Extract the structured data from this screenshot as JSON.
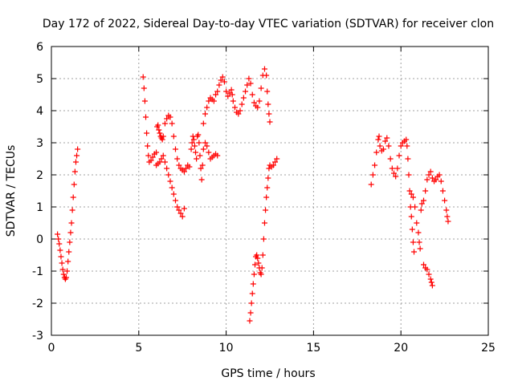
{
  "chart_data": {
    "type": "scatter",
    "title": "Day 172 of 2022, Sidereal Day-to-day VTEC variation (SDTVAR) for receiver clon",
    "xlabel": "GPS time / hours",
    "ylabel": "SDTVAR / TECUs",
    "xlim": [
      0,
      25
    ],
    "ylim": [
      -3,
      6
    ],
    "xticks": [
      0,
      5,
      10,
      15,
      20,
      25
    ],
    "yticks": [
      -3,
      -2,
      -1,
      0,
      1,
      2,
      3,
      4,
      5,
      6
    ],
    "xtick_labels": [
      "0",
      "5",
      "10",
      "15",
      "20",
      "25"
    ],
    "ytick_labels": [
      "-3",
      "-2",
      "-1",
      "0",
      "1",
      "2",
      "3",
      "4",
      "5",
      "6"
    ],
    "grid": true,
    "marker": "+",
    "color": "#ff0000",
    "series": [
      {
        "name": "SDTVAR",
        "points": [
          [
            0.35,
            0.15
          ],
          [
            0.4,
            0.0
          ],
          [
            0.45,
            -0.15
          ],
          [
            0.5,
            -0.35
          ],
          [
            0.55,
            -0.55
          ],
          [
            0.6,
            -0.75
          ],
          [
            0.65,
            -0.95
          ],
          [
            0.7,
            -1.1
          ],
          [
            0.75,
            -1.2
          ],
          [
            0.8,
            -1.25
          ],
          [
            0.85,
            -1.2
          ],
          [
            0.9,
            -1.0
          ],
          [
            0.95,
            -0.7
          ],
          [
            1.0,
            -0.4
          ],
          [
            1.05,
            -0.1
          ],
          [
            1.1,
            0.2
          ],
          [
            1.15,
            0.5
          ],
          [
            1.2,
            0.9
          ],
          [
            1.25,
            1.3
          ],
          [
            1.3,
            1.7
          ],
          [
            1.35,
            2.1
          ],
          [
            1.4,
            2.4
          ],
          [
            1.45,
            2.6
          ],
          [
            1.5,
            2.8
          ],
          [
            5.25,
            5.05
          ],
          [
            5.3,
            4.7
          ],
          [
            5.35,
            4.3
          ],
          [
            5.4,
            3.8
          ],
          [
            5.45,
            3.3
          ],
          [
            5.5,
            2.9
          ],
          [
            5.55,
            2.6
          ],
          [
            5.6,
            2.4
          ],
          [
            5.7,
            2.45
          ],
          [
            5.8,
            2.55
          ],
          [
            5.9,
            2.65
          ],
          [
            6.0,
            2.7
          ],
          [
            6.05,
            3.5
          ],
          [
            6.1,
            3.55
          ],
          [
            6.15,
            3.4
          ],
          [
            6.2,
            3.3
          ],
          [
            6.25,
            3.2
          ],
          [
            6.3,
            3.15
          ],
          [
            6.35,
            3.1
          ],
          [
            6.4,
            3.2
          ],
          [
            6.5,
            3.6
          ],
          [
            6.6,
            3.75
          ],
          [
            6.7,
            3.85
          ],
          [
            6.8,
            3.8
          ],
          [
            6.9,
            3.6
          ],
          [
            7.0,
            3.2
          ],
          [
            7.1,
            2.8
          ],
          [
            7.2,
            2.5
          ],
          [
            7.3,
            2.3
          ],
          [
            7.4,
            2.2
          ],
          [
            7.5,
            2.15
          ],
          [
            7.6,
            2.1
          ],
          [
            7.7,
            2.2
          ],
          [
            7.8,
            2.3
          ],
          [
            7.9,
            2.25
          ],
          [
            6.0,
            2.3
          ],
          [
            6.1,
            2.35
          ],
          [
            6.2,
            2.4
          ],
          [
            6.3,
            2.5
          ],
          [
            6.4,
            2.6
          ],
          [
            6.5,
            2.4
          ],
          [
            6.6,
            2.2
          ],
          [
            6.7,
            2.0
          ],
          [
            6.8,
            1.8
          ],
          [
            6.9,
            1.6
          ],
          [
            7.0,
            1.4
          ],
          [
            7.1,
            1.2
          ],
          [
            7.2,
            1.0
          ],
          [
            7.3,
            0.9
          ],
          [
            7.4,
            0.8
          ],
          [
            7.5,
            0.7
          ],
          [
            7.6,
            0.95
          ],
          [
            8.0,
            2.8
          ],
          [
            8.05,
            3.0
          ],
          [
            8.1,
            3.2
          ],
          [
            8.15,
            3.1
          ],
          [
            8.2,
            2.9
          ],
          [
            8.25,
            2.7
          ],
          [
            8.3,
            2.5
          ],
          [
            8.35,
            3.2
          ],
          [
            8.4,
            3.25
          ],
          [
            8.45,
            3.0
          ],
          [
            8.5,
            2.6
          ],
          [
            8.55,
            2.2
          ],
          [
            8.6,
            1.85
          ],
          [
            8.65,
            2.3
          ],
          [
            8.7,
            2.8
          ],
          [
            8.8,
            3.0
          ],
          [
            8.9,
            2.9
          ],
          [
            9.0,
            2.7
          ],
          [
            9.1,
            2.5
          ],
          [
            9.2,
            2.55
          ],
          [
            9.3,
            2.6
          ],
          [
            9.4,
            2.65
          ],
          [
            9.5,
            2.6
          ],
          [
            8.7,
            3.6
          ],
          [
            8.8,
            3.9
          ],
          [
            8.9,
            4.1
          ],
          [
            9.0,
            4.3
          ],
          [
            9.1,
            4.4
          ],
          [
            9.2,
            4.35
          ],
          [
            9.3,
            4.3
          ],
          [
            9.4,
            4.5
          ],
          [
            9.5,
            4.6
          ],
          [
            9.6,
            4.8
          ],
          [
            9.7,
            4.95
          ],
          [
            9.8,
            5.05
          ],
          [
            9.9,
            4.9
          ],
          [
            10.0,
            4.6
          ],
          [
            10.1,
            4.45
          ],
          [
            10.2,
            4.55
          ],
          [
            10.3,
            4.65
          ],
          [
            10.35,
            4.5
          ],
          [
            10.4,
            4.3
          ],
          [
            10.5,
            4.1
          ],
          [
            10.6,
            3.95
          ],
          [
            10.7,
            3.9
          ],
          [
            10.8,
            4.0
          ],
          [
            10.9,
            4.2
          ],
          [
            11.0,
            4.4
          ],
          [
            11.1,
            4.6
          ],
          [
            11.2,
            4.8
          ],
          [
            11.3,
            5.0
          ],
          [
            11.4,
            4.85
          ],
          [
            11.5,
            4.5
          ],
          [
            11.6,
            4.25
          ],
          [
            11.7,
            4.15
          ],
          [
            11.8,
            4.1
          ],
          [
            11.9,
            4.3
          ],
          [
            12.0,
            4.7
          ],
          [
            12.1,
            5.1
          ],
          [
            12.2,
            5.3
          ],
          [
            12.3,
            5.1
          ],
          [
            12.35,
            4.6
          ],
          [
            12.4,
            4.2
          ],
          [
            12.45,
            3.9
          ],
          [
            12.5,
            3.65
          ],
          [
            11.35,
            -2.55
          ],
          [
            11.4,
            -2.3
          ],
          [
            11.45,
            -2.0
          ],
          [
            11.5,
            -1.7
          ],
          [
            11.55,
            -1.4
          ],
          [
            11.6,
            -1.1
          ],
          [
            11.65,
            -0.8
          ],
          [
            11.7,
            -0.55
          ],
          [
            11.75,
            -0.5
          ],
          [
            11.8,
            -0.6
          ],
          [
            11.85,
            -0.75
          ],
          [
            11.9,
            -0.9
          ],
          [
            11.95,
            -1.05
          ],
          [
            12.0,
            -1.1
          ],
          [
            12.05,
            -0.9
          ],
          [
            12.1,
            -0.5
          ],
          [
            12.15,
            0.0
          ],
          [
            12.2,
            0.5
          ],
          [
            12.25,
            0.9
          ],
          [
            12.3,
            1.3
          ],
          [
            12.35,
            1.6
          ],
          [
            12.4,
            1.9
          ],
          [
            12.45,
            2.2
          ],
          [
            12.5,
            2.3
          ],
          [
            12.6,
            2.25
          ],
          [
            12.7,
            2.3
          ],
          [
            12.8,
            2.4
          ],
          [
            12.9,
            2.5
          ],
          [
            18.3,
            1.7
          ],
          [
            18.4,
            2.0
          ],
          [
            18.5,
            2.3
          ],
          [
            18.6,
            2.7
          ],
          [
            18.7,
            3.1
          ],
          [
            18.75,
            3.2
          ],
          [
            18.8,
            2.9
          ],
          [
            18.9,
            2.75
          ],
          [
            19.0,
            2.8
          ],
          [
            19.1,
            3.05
          ],
          [
            19.2,
            3.15
          ],
          [
            19.3,
            2.9
          ],
          [
            19.4,
            2.5
          ],
          [
            19.5,
            2.2
          ],
          [
            19.6,
            2.05
          ],
          [
            19.7,
            1.95
          ],
          [
            19.8,
            2.2
          ],
          [
            19.9,
            2.6
          ],
          [
            20.0,
            2.9
          ],
          [
            20.1,
            3.0
          ],
          [
            20.2,
            3.05
          ],
          [
            20.3,
            3.1
          ],
          [
            20.35,
            2.9
          ],
          [
            20.4,
            2.5
          ],
          [
            20.45,
            2.0
          ],
          [
            20.5,
            1.5
          ],
          [
            20.55,
            1.0
          ],
          [
            20.6,
            0.7
          ],
          [
            20.65,
            0.3
          ],
          [
            20.7,
            -0.1
          ],
          [
            20.75,
            -0.4
          ],
          [
            20.6,
            1.4
          ],
          [
            20.7,
            1.3
          ],
          [
            20.8,
            1.0
          ],
          [
            20.9,
            0.5
          ],
          [
            21.0,
            0.2
          ],
          [
            21.05,
            -0.1
          ],
          [
            21.1,
            -0.3
          ],
          [
            21.15,
            0.9
          ],
          [
            21.2,
            1.1
          ],
          [
            21.3,
            1.2
          ],
          [
            21.4,
            1.5
          ],
          [
            21.5,
            1.85
          ],
          [
            21.6,
            2.0
          ],
          [
            21.7,
            2.1
          ],
          [
            21.8,
            1.9
          ],
          [
            21.9,
            1.8
          ],
          [
            22.0,
            1.85
          ],
          [
            22.1,
            1.95
          ],
          [
            22.2,
            2.0
          ],
          [
            22.3,
            1.8
          ],
          [
            22.4,
            1.5
          ],
          [
            22.5,
            1.2
          ],
          [
            22.6,
            0.9
          ],
          [
            22.65,
            0.7
          ],
          [
            22.7,
            0.55
          ],
          [
            21.3,
            -0.8
          ],
          [
            21.4,
            -0.9
          ],
          [
            21.5,
            -0.95
          ],
          [
            21.6,
            -1.1
          ],
          [
            21.7,
            -1.25
          ],
          [
            21.75,
            -1.35
          ],
          [
            21.8,
            -1.45
          ]
        ]
      }
    ]
  }
}
